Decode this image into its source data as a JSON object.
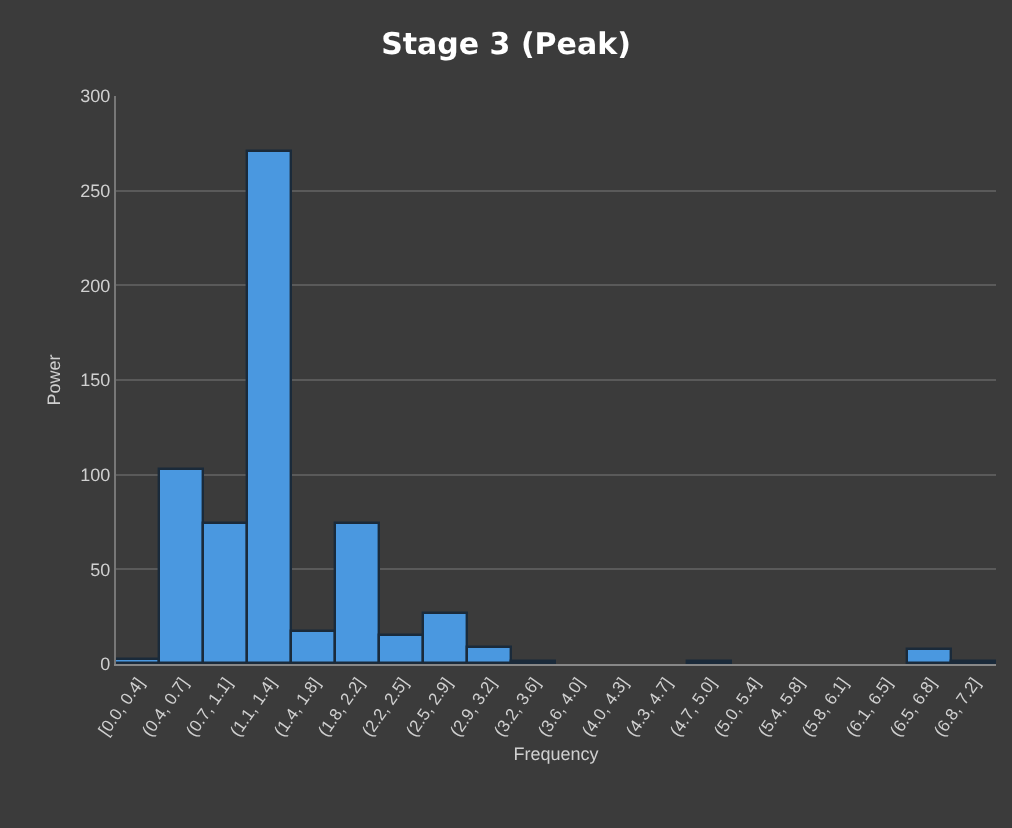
{
  "chart_data": {
    "type": "bar",
    "title": "Stage 3 (Peak)",
    "xlabel": "Frequency",
    "ylabel": "Power",
    "categories": [
      "[0.0, 0.4]",
      "(0.4, 0.7]",
      "(0.7, 1.1]",
      "(1.1, 1.4]",
      "(1.4, 1.8]",
      "(1.8, 2.2]",
      "(2.2, 2.5]",
      "(2.5, 2.9]",
      "(2.9, 3.2]",
      "(3.2, 3.6]",
      "(3.6, 4.0]",
      "(4.0, 4.3]",
      "(4.3, 4.7]",
      "(4.7, 5.0]",
      "(5.0, 5.4]",
      "(5.4, 5.8]",
      "(5.8, 6.1]",
      "(6.1, 6.5]",
      "(6.5, 6.8]",
      "(6.8, 7.2]"
    ],
    "values": [
      2,
      102,
      74,
      270,
      17,
      74,
      15,
      26,
      8,
      1,
      0,
      0,
      0,
      1,
      0,
      0,
      0,
      0,
      7,
      1
    ],
    "color": "#4a98e0",
    "ylim": [
      0,
      300
    ],
    "yticks": [
      0,
      50,
      100,
      150,
      200,
      250,
      300
    ],
    "grid": "y"
  }
}
